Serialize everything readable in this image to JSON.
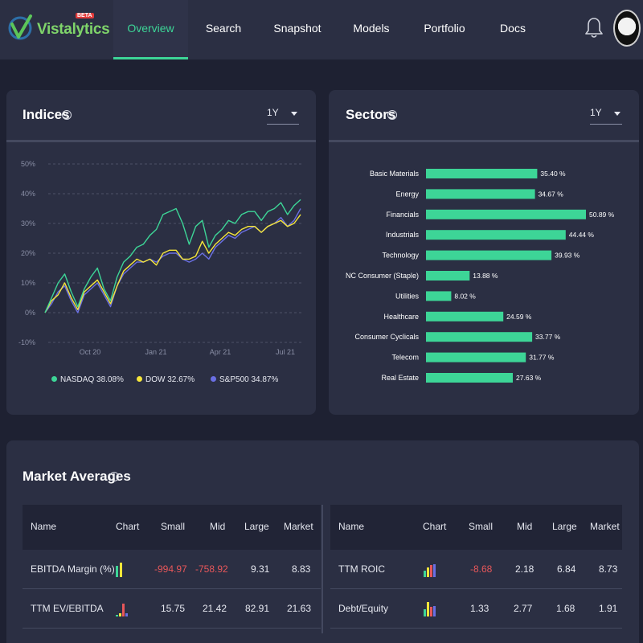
{
  "nav": {
    "logo_text": "Vistalytics",
    "logo_badge": "BETA",
    "items": [
      "Overview",
      "Search",
      "Snapshot",
      "Models",
      "Portfolio",
      "Docs"
    ],
    "active_item": "Overview"
  },
  "indices": {
    "title": "Indices",
    "period": "1Y",
    "legend": [
      "NASDAQ 38.08%",
      "DOW 32.67%",
      "S&P500 34.87%"
    ],
    "colors": {
      "NASDAQ": "#3dd597",
      "DOW": "#f5e53a",
      "SP500": "#6a6fe3"
    }
  },
  "sectors": {
    "title": "Sectors",
    "period": "1Y",
    "bar_color": "#3dd597"
  },
  "market_averages": {
    "title": "Market Averages",
    "columns": [
      "Name",
      "Chart",
      "Small",
      "Mid",
      "Large",
      "Market"
    ],
    "left_rows": [
      {
        "name": "EBITDA Margin (%)",
        "small": "-994.97",
        "mid": "-758.92",
        "large": "9.31",
        "market": "8.83"
      },
      {
        "name": "TTM EV/EBITDA",
        "small": "15.75",
        "mid": "21.42",
        "large": "82.91",
        "market": "21.63"
      }
    ],
    "right_rows": [
      {
        "name": "TTM ROIC",
        "small": "-8.68",
        "mid": "2.18",
        "large": "6.84",
        "market": "8.73"
      },
      {
        "name": "Debt/Equity",
        "small": "1.33",
        "mid": "2.77",
        "large": "1.68",
        "market": "1.91"
      }
    ]
  },
  "chart_data": [
    {
      "type": "line",
      "ylim": [
        -10,
        50
      ],
      "yticks": [
        "50%",
        "40%",
        "30%",
        "20%",
        "10%",
        "0%",
        "-10%"
      ],
      "xticks": [
        "Oct 20",
        "Jan 21",
        "Apr 21",
        "Jul 21"
      ],
      "grid": true,
      "legend_position": "bottom",
      "series": [
        {
          "name": "NASDAQ",
          "color": "#3dd597",
          "values": [
            0,
            5,
            10,
            13,
            7,
            2,
            8,
            12,
            15,
            8,
            4,
            12,
            17,
            19,
            22,
            23,
            26,
            28,
            33,
            34,
            35,
            30,
            23,
            29,
            31,
            22,
            26,
            28,
            31,
            30,
            33,
            34,
            34,
            31,
            34,
            35,
            37,
            33,
            36,
            38
          ]
        },
        {
          "name": "DOW",
          "color": "#f5e53a",
          "values": [
            0,
            4,
            6,
            10,
            5,
            1,
            7,
            9,
            11,
            7,
            3,
            9,
            14,
            16,
            18,
            17,
            18,
            16,
            20,
            21,
            21,
            18,
            18,
            19,
            24,
            20,
            23,
            25,
            27,
            26,
            28,
            29,
            29,
            27,
            29,
            30,
            31,
            29,
            30,
            33
          ]
        },
        {
          "name": "S&P500",
          "color": "#6a6fe3",
          "values": [
            0,
            3,
            7,
            9,
            4,
            0,
            6,
            8,
            10,
            6,
            2,
            9,
            13,
            15,
            17,
            17,
            18,
            17,
            19,
            20,
            20,
            18,
            17,
            18,
            20,
            18,
            22,
            24,
            26,
            25,
            27,
            28,
            29,
            27,
            29,
            30,
            32,
            29,
            31,
            35
          ]
        }
      ]
    },
    {
      "type": "bar",
      "orientation": "horizontal",
      "categories": [
        "Basic Materials",
        "Energy",
        "Financials",
        "Industrials",
        "Technology",
        "NC Consumer (Staple)",
        "Utilities",
        "Healthcare",
        "Consumer Cyclicals",
        "Telecom",
        "Real Estate"
      ],
      "values": [
        35.4,
        34.67,
        50.89,
        44.44,
        39.93,
        13.88,
        8.02,
        24.59,
        33.77,
        31.77,
        27.63
      ],
      "labels": [
        "35.40 %",
        "34.67 %",
        "50.89 %",
        "44.44 %",
        "39.93 %",
        "13.88 %",
        "8.02 %",
        "24.59 %",
        "33.77 %",
        "31.77 %",
        "27.63 %"
      ]
    }
  ]
}
